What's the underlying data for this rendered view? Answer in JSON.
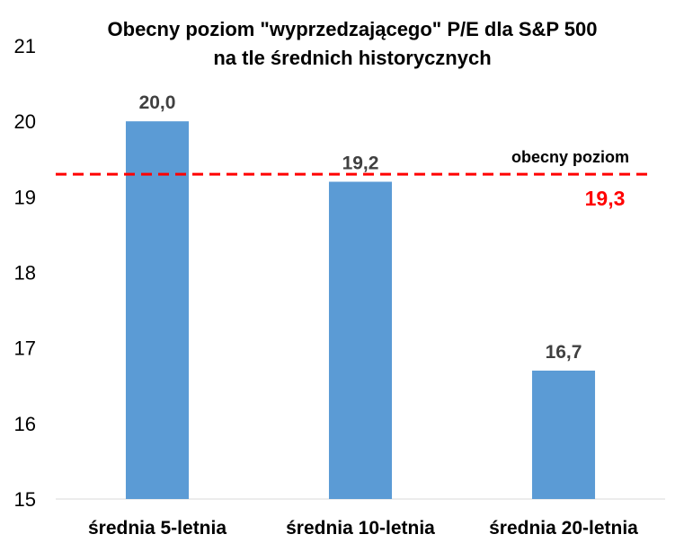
{
  "chart_data": {
    "type": "bar",
    "title_line1": "Obecny poziom \"wyprzedzającego\" P/E dla S&P 500",
    "title_line2": "na tle średnich historycznych",
    "categories": [
      "średnia 5-letnia",
      "średnia 10-letnia",
      "średnia 20-letnia"
    ],
    "values": [
      20.0,
      19.2,
      16.7
    ],
    "value_labels": [
      "20,0",
      "19,2",
      "16,7"
    ],
    "ylim": [
      15,
      21
    ],
    "yticks": [
      "15",
      "16",
      "17",
      "18",
      "19",
      "20",
      "21"
    ],
    "grid": false,
    "bar_color": "#5B9BD5",
    "reference_line": {
      "label": "obecny poziom",
      "value": 19.3,
      "value_label": "19,3",
      "color": "#FF0000",
      "style": "dashed"
    }
  }
}
